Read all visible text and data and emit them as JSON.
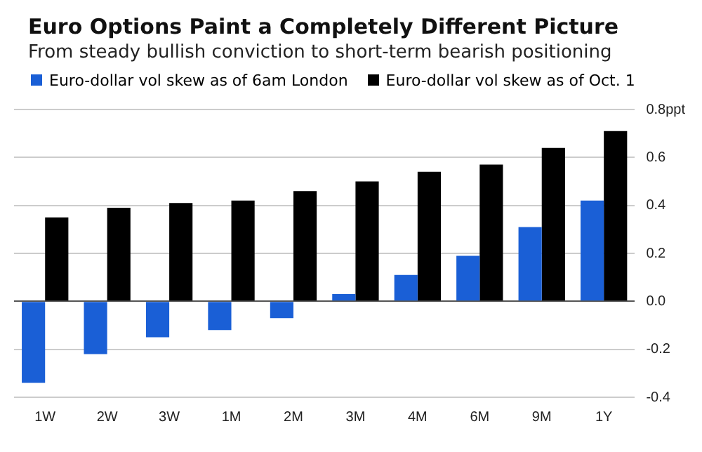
{
  "chart_data": {
    "type": "bar",
    "title": "Euro Options Paint a Completely Different Picture",
    "subtitle": "From steady bullish conviction to short-term bearish positioning",
    "categories": [
      "1W",
      "2W",
      "3W",
      "1M",
      "2M",
      "3M",
      "4M",
      "6M",
      "9M",
      "1Y"
    ],
    "series": [
      {
        "name": "Euro-dollar vol skew as of 6am London",
        "color": "#1a5fd6",
        "values": [
          -0.34,
          -0.22,
          -0.15,
          -0.12,
          -0.07,
          0.03,
          0.11,
          0.19,
          0.31,
          0.42
        ]
      },
      {
        "name": "Euro-dollar vol skew as of Oct. 1",
        "color": "#000000",
        "values": [
          0.35,
          0.39,
          0.41,
          0.42,
          0.46,
          0.5,
          0.54,
          0.57,
          0.64,
          0.71
        ]
      }
    ],
    "ylim": [
      -0.4,
      0.8
    ],
    "yticks": [
      -0.4,
      -0.2,
      {
        "value": 0,
        "label": "0.0"
      },
      0.2,
      0.4,
      0.6,
      {
        "value": 0.8,
        "label": "0.8ppt"
      }
    ],
    "grid": "y",
    "legend": "top left"
  }
}
